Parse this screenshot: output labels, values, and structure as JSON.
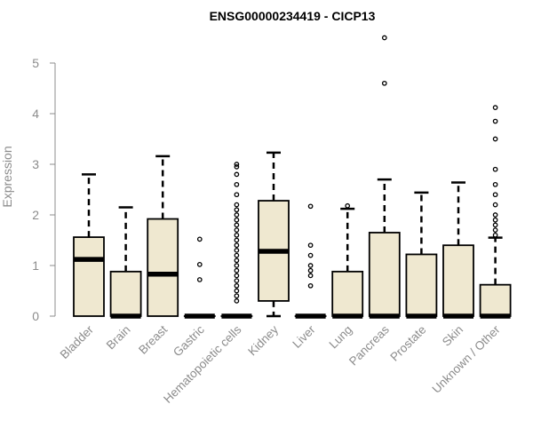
{
  "chart_data": {
    "type": "boxplot",
    "title": "ENSG00000234419 - CICP13",
    "xlabel": "",
    "ylabel": "Expression",
    "ylim": [
      0,
      5.5
    ],
    "yticks": [
      0,
      1,
      2,
      3,
      4,
      5
    ],
    "grid": false,
    "box_fill": "#efe8d0",
    "outline_color": "#000000",
    "axis_color": "#8c8c8c",
    "categories": [
      "Bladder",
      "Brain",
      "Breast",
      "Gastric",
      "Hematopoietic cells",
      "Kidney",
      "Liver",
      "Lung",
      "Pancreas",
      "Prostate",
      "Skin",
      "Unknown / Other"
    ],
    "boxes": [
      {
        "min": 0,
        "q1": 0,
        "median": 1.12,
        "q3": 1.56,
        "max": 2.8,
        "outliers": []
      },
      {
        "min": 0,
        "q1": 0,
        "median": 0,
        "q3": 0.88,
        "max": 2.15,
        "outliers": []
      },
      {
        "min": 0,
        "q1": 0,
        "median": 0.83,
        "q3": 1.92,
        "max": 3.16,
        "outliers": []
      },
      {
        "min": 0,
        "q1": 0,
        "median": 0,
        "q3": 0,
        "max": 0,
        "outliers": [
          0.72,
          1.02,
          1.52
        ]
      },
      {
        "min": 0,
        "q1": 0,
        "median": 0,
        "q3": 0,
        "max": 0,
        "outliers": [
          0.3,
          0.4,
          0.5,
          0.6,
          0.7,
          0.8,
          0.9,
          1.0,
          1.1,
          1.2,
          1.3,
          1.4,
          1.5,
          1.6,
          1.7,
          1.8,
          1.9,
          2.0,
          2.1,
          2.2,
          2.4,
          2.6,
          2.8,
          2.95,
          3.0
        ]
      },
      {
        "min": 0,
        "q1": 0.3,
        "median": 1.28,
        "q3": 2.28,
        "max": 3.23,
        "outliers": []
      },
      {
        "min": 0,
        "q1": 0,
        "median": 0,
        "q3": 0,
        "max": 0,
        "outliers": [
          0.6,
          0.8,
          0.9,
          1.0,
          1.2,
          1.4,
          2.17
        ]
      },
      {
        "min": 0,
        "q1": 0,
        "median": 0,
        "q3": 0.88,
        "max": 2.12,
        "outliers": [
          2.18
        ]
      },
      {
        "min": 0,
        "q1": 0,
        "median": 0,
        "q3": 1.65,
        "max": 2.7,
        "outliers": [
          4.6,
          5.5
        ]
      },
      {
        "min": 0,
        "q1": 0,
        "median": 0,
        "q3": 1.22,
        "max": 2.44,
        "outliers": []
      },
      {
        "min": 0,
        "q1": 0,
        "median": 0,
        "q3": 1.4,
        "max": 2.64,
        "outliers": []
      },
      {
        "min": 0,
        "q1": 0,
        "median": 0,
        "q3": 0.62,
        "max": 1.55,
        "outliers": [
          1.6,
          1.7,
          1.8,
          1.9,
          2.0,
          2.2,
          2.4,
          2.6,
          2.9,
          3.5,
          3.85,
          4.12
        ]
      }
    ]
  }
}
